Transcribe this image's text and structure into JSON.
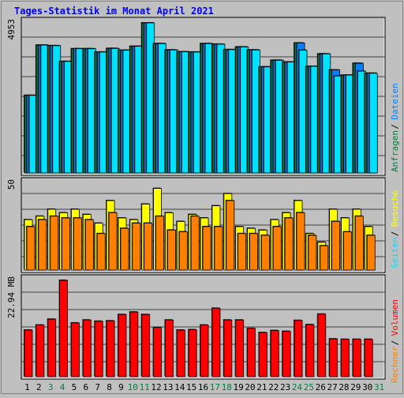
{
  "colors": {
    "background": "#c0c0c0",
    "title": "#0000ff",
    "hits": "#008040",
    "files": "#0080ff",
    "pages": "#00e0ff",
    "visits": "#ffff00",
    "sites": "#ff8000",
    "kbytes": "#ff0000",
    "border": "#000000",
    "gridline": "#404040",
    "weekend_label": "#008040",
    "weekday_label": "#000000"
  },
  "chart_data": {
    "type": "bar",
    "title": "Tages-Statistik im Monat April 2021",
    "categories": [
      "1",
      "2",
      "3",
      "4",
      "5",
      "6",
      "7",
      "8",
      "9",
      "10",
      "11",
      "12",
      "13",
      "14",
      "15",
      "16",
      "17",
      "18",
      "19",
      "20",
      "21",
      "22",
      "23",
      "24",
      "25",
      "26",
      "27",
      "28",
      "29",
      "30",
      "31"
    ],
    "weekend_days": [
      "3",
      "4",
      "10",
      "11",
      "17",
      "18",
      "24",
      "25",
      "31"
    ],
    "panels": [
      {
        "max_label": "4953",
        "ymax": 4953,
        "grid": true,
        "legend": [
          {
            "text": "Anfragen",
            "color_key": "hits"
          },
          {
            "text": "Dateien",
            "color_key": "files"
          }
        ],
        "series": [
          {
            "name": "Anfragen",
            "color_key": "hits",
            "values": [
              2560,
              4220,
              4200,
              3680,
              4100,
              4100,
              3990,
              4110,
              4050,
              4180,
              4953,
              4270,
              4060,
              4000,
              3990,
              4270,
              4250,
              4070,
              4160,
              4060,
              3500,
              3720,
              3660,
              4290,
              3520,
              3930,
              3400,
              3230,
              3620,
              3290,
              0
            ]
          },
          {
            "name": "Dateien",
            "color_key": "files",
            "values": [
              2560,
              4220,
              4200,
              3680,
              4100,
              4100,
              3990,
              4110,
              4050,
              4180,
              4953,
              4270,
              4060,
              4000,
              3990,
              4270,
              4250,
              4070,
              4160,
              4060,
              3500,
              3720,
              3660,
              4290,
              3520,
              3930,
              3400,
              3230,
              3620,
              3290,
              0
            ]
          },
          {
            "name": "Seiten",
            "color_key": "pages",
            "values": [
              2560,
              4220,
              4200,
              3680,
              4100,
              4100,
              3990,
              4110,
              4050,
              4180,
              4953,
              4270,
              4060,
              4000,
              3990,
              4270,
              4250,
              4070,
              4160,
              4060,
              3500,
              3720,
              3660,
              4050,
              3520,
              3930,
              3200,
              3230,
              3360,
              3290,
              0
            ]
          }
        ]
      },
      {
        "max_label": "50",
        "ymax": 50,
        "grid": true,
        "legend": [
          {
            "text": "Seiten",
            "color_key": "pages"
          },
          {
            "text": "Besuche",
            "color_key": "visits"
          }
        ],
        "series": [
          {
            "name": "Besuche",
            "color_key": "visits",
            "values": [
              29,
              31,
              35,
              33,
              35,
              32,
              27,
              40,
              30,
              29,
              38,
              47,
              33,
              28,
              32,
              30,
              37,
              44,
              25,
              24,
              23,
              29,
              33,
              40,
              21,
              16,
              35,
              30,
              35,
              25,
              0
            ]
          },
          {
            "name": "Rechner",
            "color_key": "sites",
            "values": [
              25,
              29,
              31,
              30,
              30,
              29,
              21,
              33,
              24,
              27,
              27,
              31,
              23,
              22,
              31,
              25,
              25,
              40,
              21,
              21,
              20,
              25,
              30,
              33,
              20,
              14,
              28,
              22,
              31,
              20,
              0
            ]
          }
        ]
      },
      {
        "max_label": "22.94 MB",
        "ymax": 22.94,
        "grid": true,
        "legend": [
          {
            "text": "Rechner",
            "color_key": "sites"
          },
          {
            "text": "Volumen",
            "color_key": "kbytes"
          }
        ],
        "series": [
          {
            "name": "Volumen",
            "color_key": "kbytes",
            "values": [
              11.1,
              12.3,
              13.7,
              22.94,
              12.8,
              13.5,
              13.2,
              13.3,
              14.8,
              15.4,
              14.8,
              11.7,
              13.5,
              11.1,
              11.2,
              12.3,
              16.3,
              13.5,
              13.5,
              11.5,
              10.5,
              11.0,
              10.8,
              13.4,
              12.4,
              14.9,
              9.0,
              8.9,
              8.9,
              8.9,
              0
            ]
          }
        ]
      }
    ]
  }
}
